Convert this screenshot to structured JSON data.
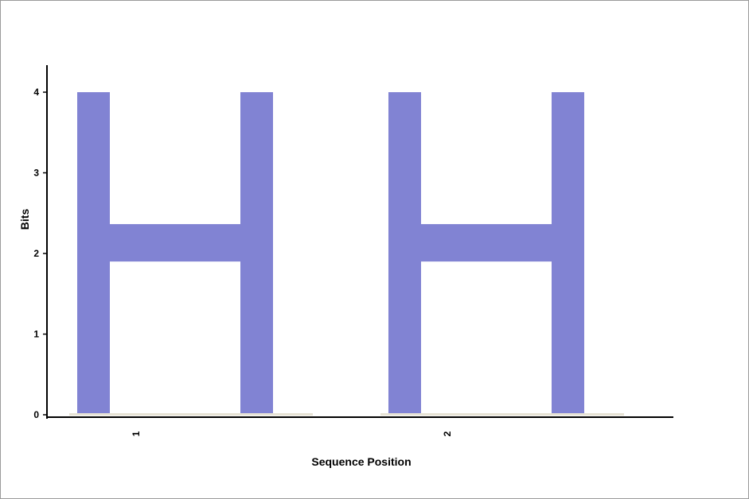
{
  "chart_data": {
    "type": "sequence-logo",
    "title": "",
    "xlabel": "Sequence Position",
    "ylabel": "Bits",
    "ylim": [
      0,
      4
    ],
    "yticks": [
      "0",
      "1",
      "2",
      "3",
      "4"
    ],
    "positions": [
      {
        "label": "1",
        "letters": [
          {
            "letter": "H",
            "bits": 4.0,
            "color": "#8183d3"
          }
        ]
      },
      {
        "label": "2",
        "letters": [
          {
            "letter": "H",
            "bits": 4.0,
            "color": "#8183d3"
          }
        ]
      }
    ],
    "grid": false,
    "legend": "none"
  }
}
